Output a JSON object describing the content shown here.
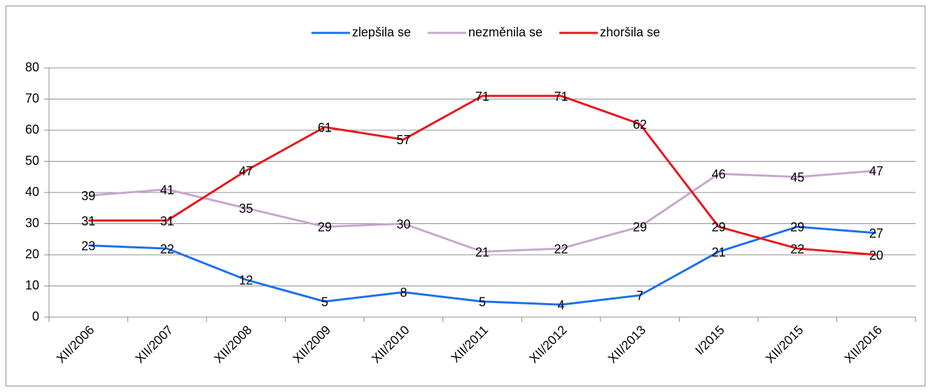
{
  "chart_data": {
    "type": "line",
    "categories": [
      "XII/2006",
      "XII/2007",
      "XII/2008",
      "XII/2009",
      "XII/2010",
      "XII/2011",
      "XII/2012",
      "XII/2013",
      "I/2015",
      "XII/2015",
      "XII/2016"
    ],
    "series": [
      {
        "name": "zlepšila se",
        "color": "#1c6ff0",
        "values": [
          23,
          22,
          12,
          5,
          8,
          5,
          4,
          7,
          21,
          29,
          27
        ]
      },
      {
        "name": "nezměnila se",
        "color": "#c9a5d1",
        "values": [
          39,
          41,
          35,
          29,
          30,
          21,
          22,
          29,
          46,
          45,
          47
        ]
      },
      {
        "name": "zhoršila se",
        "color": "#e8161b",
        "values": [
          31,
          31,
          47,
          61,
          57,
          71,
          71,
          62,
          29,
          22,
          20
        ]
      }
    ],
    "ylim": [
      0,
      80
    ],
    "yticks": [
      0,
      10,
      20,
      30,
      40,
      50,
      60,
      70,
      80
    ],
    "grid": true,
    "legend": "top"
  }
}
